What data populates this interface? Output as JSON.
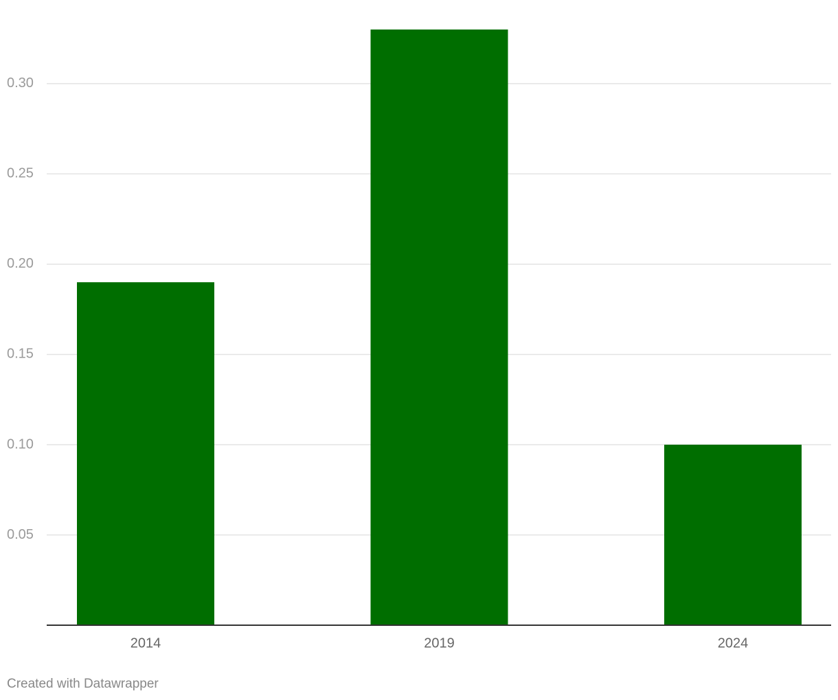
{
  "chart_data": {
    "type": "bar",
    "categories": [
      "2014",
      "2019",
      "2024"
    ],
    "values": [
      0.19,
      0.33,
      0.1
    ],
    "color": "#006e00",
    "ylim": [
      0,
      0.33
    ],
    "yticks": [
      0.05,
      {
        "value": 0.1,
        "label": "0.10"
      },
      0.15,
      {
        "value": 0.2,
        "label": "0.20"
      },
      0.25,
      {
        "value": 0.3,
        "label": "0.30"
      }
    ],
    "grid": true,
    "credit": "Created with Datawrapper"
  }
}
